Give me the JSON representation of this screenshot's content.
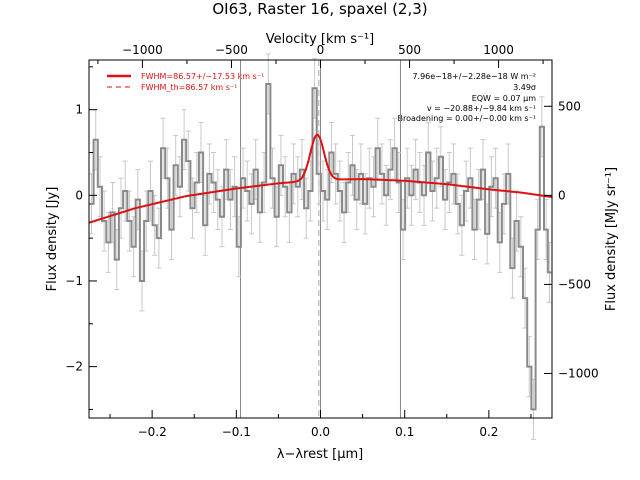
{
  "title": "OI63, Raster 16, spaxel (2,3)",
  "colors": {
    "model": "#e01010",
    "spectrum": "#8a8a8a",
    "errorbar": "#c8c8c8",
    "axes": "#000000",
    "vline": "#888888"
  },
  "chart_data": {
    "type": "line",
    "title": "OI63, Raster 16, spaxel (2,3)",
    "xlabel": "λ−λrest [μm]",
    "ylabel": "Flux density [Jy]",
    "x2label": "Velocity [km s⁻¹]",
    "y2label": "Flux density [MJy sr⁻¹]",
    "xlim": [
      -0.275,
      0.275
    ],
    "ylim": [
      -2.6,
      1.58
    ],
    "velocity_lim": [
      -1300,
      1300
    ],
    "y2_lim": [
      -1250,
      760
    ],
    "xticks": [
      -0.2,
      -0.1,
      0.0,
      0.1,
      0.2
    ],
    "xtick_labels": [
      "−0.2",
      "−0.1",
      "0.0",
      "0.1",
      "0.2"
    ],
    "yticks": [
      1,
      0,
      -1,
      -2
    ],
    "ytick_labels": [
      "1",
      "0",
      "−1",
      "−2"
    ],
    "vticks": [
      -1000,
      -500,
      0,
      500,
      1000
    ],
    "vtick_labels": [
      "−1000",
      "−500",
      "0",
      "500",
      "1000"
    ],
    "y2ticks": [
      500,
      0,
      -500,
      -1000
    ],
    "y2tick_labels": [
      "500",
      "0",
      "−500",
      "−1000"
    ],
    "vertical_lines_x": [
      -0.095,
      0.0,
      0.095
    ],
    "dashed_line_x": -0.002,
    "grid": false,
    "legend": {
      "position": "top-left",
      "entries": [
        "FWHM=86.57+/−17.53 km s⁻¹",
        "FWHM_th=86.57 km s⁻¹"
      ]
    },
    "annotations": [
      "7.96e−18+/−2.28e−18 W m⁻²",
      "3.49σ",
      "EQW = 0.07 μm",
      "v = −20.88+/−9.84 km s⁻¹",
      "Broadening = 0.00+/−0.00 km s⁻¹"
    ],
    "continuum": {
      "x": [
        -0.275,
        -0.22,
        -0.16,
        -0.1,
        -0.05,
        0.0,
        0.05,
        0.1,
        0.15,
        0.2,
        0.24,
        0.275
      ],
      "y": [
        -0.32,
        -0.15,
        -0.01,
        0.08,
        0.14,
        0.18,
        0.19,
        0.17,
        0.13,
        0.07,
        0.03,
        -0.02
      ]
    },
    "gaussian": {
      "center": -0.004,
      "sigma": 0.0081,
      "amplitude": 0.53
    },
    "series": [
      {
        "x": [
          -0.272,
          -0.267,
          -0.262,
          -0.257,
          -0.252,
          -0.247,
          -0.242,
          -0.237,
          -0.232,
          -0.227,
          -0.222,
          -0.217,
          -0.212,
          -0.207,
          -0.202,
          -0.197,
          -0.192,
          -0.187,
          -0.182,
          -0.177,
          -0.172,
          -0.167,
          -0.162,
          -0.157,
          -0.152,
          -0.147,
          -0.142,
          -0.137,
          -0.132,
          -0.127,
          -0.122,
          -0.117,
          -0.112,
          -0.107,
          -0.102,
          -0.097,
          -0.092,
          -0.087,
          -0.082,
          -0.077,
          -0.072,
          -0.067,
          -0.062,
          -0.057,
          -0.052,
          -0.047,
          -0.042,
          -0.037,
          -0.032,
          -0.027,
          -0.022,
          -0.017,
          -0.012,
          -0.007,
          -0.002,
          0.003,
          0.008,
          0.013,
          0.018,
          0.023,
          0.028,
          0.033,
          0.038,
          0.043,
          0.048,
          0.053,
          0.058,
          0.063,
          0.068,
          0.073,
          0.078,
          0.083,
          0.088,
          0.093,
          0.098,
          0.103,
          0.108,
          0.113,
          0.118,
          0.123,
          0.128,
          0.133,
          0.138,
          0.143,
          0.148,
          0.153,
          0.158,
          0.163,
          0.168,
          0.173,
          0.178,
          0.183,
          0.188,
          0.193,
          0.198,
          0.203,
          0.208,
          0.213,
          0.218,
          0.223,
          0.228,
          0.233,
          0.238,
          0.243,
          0.248,
          0.253,
          0.258,
          0.263,
          0.268,
          0.272
        ],
        "y": [
          -0.1,
          0.65,
          0.1,
          -0.3,
          -0.55,
          -0.2,
          -0.75,
          -0.15,
          0.05,
          -0.3,
          -0.6,
          -0.05,
          -1.0,
          -0.3,
          0.05,
          -0.35,
          -0.5,
          0.55,
          0.2,
          -0.4,
          0.35,
          0.1,
          0.65,
          0.4,
          -0.15,
          0.15,
          0.5,
          -0.35,
          0.25,
          0.15,
          -0.05,
          -0.25,
          0.3,
          -0.05,
          0.1,
          -0.6,
          0.2,
          0.05,
          -0.1,
          0.3,
          -0.2,
          0.15,
          1.3,
          0.2,
          -0.25,
          0.35,
          0.1,
          -0.2,
          0.25,
          0.1,
          0.3,
          -0.15,
          0.05,
          1.25,
          0.25,
          0.05,
          -0.05,
          0.5,
          0.25,
          0.05,
          -0.2,
          0.15,
          0.35,
          -0.05,
          0.25,
          -0.1,
          0.2,
          0.1,
          0.55,
          0.25,
          0.0,
          0.3,
          0.55,
          0.15,
          -0.4,
          0.2,
          0.0,
          0.3,
          0.15,
          0.0,
          0.5,
          0.05,
          0.2,
          0.45,
          -0.05,
          0.15,
          0.25,
          -0.1,
          -0.35,
          0.05,
          0.2,
          -0.4,
          -0.05,
          0.3,
          -0.45,
          0.1,
          0.2,
          -0.55,
          -0.1,
          0.25,
          -0.85,
          -0.3,
          -0.6,
          -1.2,
          -2.0,
          -2.5,
          -0.4,
          0.8,
          -0.4,
          -0.9
        ],
        "err": [
          0.35,
          0.35,
          0.35,
          0.35,
          0.35,
          0.35,
          0.35,
          0.35,
          0.35,
          0.35,
          0.35,
          0.35,
          0.35,
          0.35,
          0.35,
          0.35,
          0.35,
          0.35,
          0.35,
          0.35,
          0.35,
          0.35,
          0.35,
          0.35,
          0.35,
          0.35,
          0.35,
          0.35,
          0.35,
          0.35,
          0.35,
          0.35,
          0.35,
          0.35,
          0.35,
          0.35,
          0.35,
          0.35,
          0.35,
          0.35,
          0.35,
          0.35,
          0.35,
          0.35,
          0.35,
          0.35,
          0.35,
          0.35,
          0.35,
          0.35,
          0.35,
          0.35,
          0.35,
          0.35,
          0.35,
          0.35,
          0.35,
          0.35,
          0.35,
          0.35,
          0.35,
          0.35,
          0.35,
          0.35,
          0.35,
          0.35,
          0.35,
          0.35,
          0.35,
          0.35,
          0.35,
          0.35,
          0.35,
          0.35,
          0.35,
          0.35,
          0.35,
          0.35,
          0.35,
          0.35,
          0.35,
          0.35,
          0.35,
          0.35,
          0.35,
          0.35,
          0.35,
          0.35,
          0.35,
          0.35,
          0.35,
          0.35,
          0.35,
          0.35,
          0.35,
          0.35,
          0.35,
          0.35,
          0.35,
          0.35,
          0.35,
          0.35,
          0.35,
          0.35,
          0.35,
          0.35,
          0.35,
          0.35,
          0.35,
          0.35
        ]
      }
    ]
  }
}
